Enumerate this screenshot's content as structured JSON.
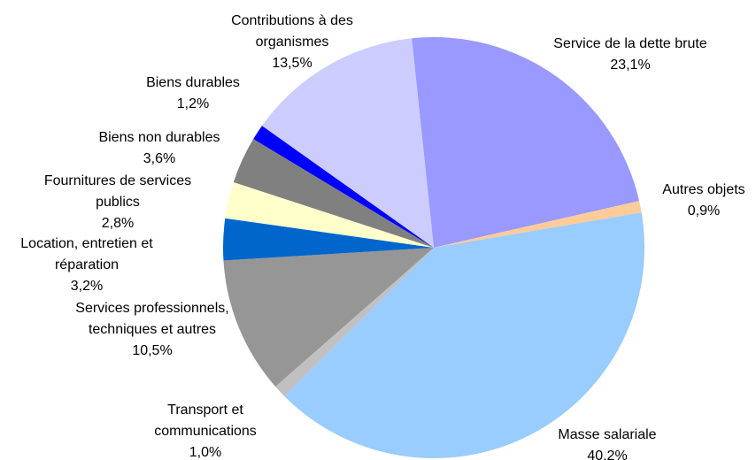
{
  "chart_data": {
    "type": "pie",
    "categories": [
      "Service de la dette brute",
      "Autres objets",
      "Masse salariale",
      "Transport et communications",
      "Services professionnels, techniques et autres",
      "Location, entretien et réparation",
      "Fournitures de services publics",
      "Biens non durables",
      "Biens durables",
      "Contributions à des organismes"
    ],
    "values": [
      23.1,
      0.9,
      40.2,
      1.0,
      10.5,
      3.2,
      2.8,
      3.6,
      1.2,
      13.5
    ],
    "value_labels": [
      "23,1%",
      "0,9%",
      "40,2%",
      "1,0%",
      "10,5%",
      "3,2%",
      "2,8%",
      "3,6%",
      "1,2%",
      "13,5%"
    ],
    "colors": [
      "#9999ff",
      "#ffcc99",
      "#99ccff",
      "#c0c0c0",
      "#969696",
      "#0066cc",
      "#ffffcc",
      "#808080",
      "#0000ff",
      "#ccccff"
    ]
  }
}
